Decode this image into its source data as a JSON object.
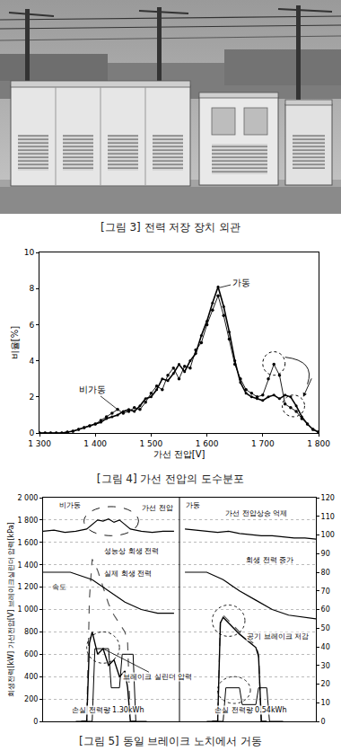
{
  "photo": {
    "caption": "[그림 3] 전력 저장 장치 외관"
  },
  "chart_data": [
    {
      "type": "line",
      "caption": "[그림 4] 가선 전압의 도수분포",
      "x_label": "가선 전압[V]",
      "y_label": "비율[%]",
      "x": [
        1300,
        1310,
        1320,
        1330,
        1340,
        1350,
        1360,
        1370,
        1380,
        1390,
        1400,
        1410,
        1420,
        1430,
        1440,
        1450,
        1460,
        1470,
        1480,
        1490,
        1500,
        1510,
        1520,
        1530,
        1540,
        1550,
        1560,
        1570,
        1580,
        1590,
        1600,
        1610,
        1620,
        1630,
        1640,
        1650,
        1660,
        1670,
        1680,
        1690,
        1700,
        1710,
        1720,
        1730,
        1740,
        1750,
        1760,
        1770,
        1780,
        1790,
        1800
      ],
      "series": [
        {
          "name": "비가동",
          "color": "#000000",
          "marker": "circle",
          "line_style": "solid",
          "values": [
            0,
            0,
            0,
            0,
            0,
            0.05,
            0.1,
            0.2,
            0.3,
            0.4,
            0.5,
            0.7,
            0.9,
            1.1,
            1.3,
            1.1,
            1.2,
            1.4,
            1.3,
            1.7,
            2.2,
            2.6,
            2.4,
            3.2,
            3.6,
            3.0,
            3.7,
            3.6,
            4.6,
            5.0,
            6.0,
            6.8,
            7.6,
            6.5,
            5.2,
            3.8,
            3.0,
            2.4,
            2.2,
            2.0,
            2.1,
            3.0,
            3.8,
            3.2,
            1.6,
            1.4,
            1.2,
            0.8,
            0.5,
            0.2,
            0.05
          ]
        },
        {
          "name": "가동",
          "color": "#000000",
          "marker": "circle",
          "line_style": "solid",
          "values": [
            0,
            0,
            0,
            0,
            0,
            0.05,
            0.1,
            0.2,
            0.3,
            0.4,
            0.5,
            0.6,
            0.8,
            0.9,
            1.0,
            1.2,
            1.3,
            1.2,
            1.5,
            1.9,
            2.0,
            2.4,
            3.0,
            2.9,
            3.3,
            3.8,
            3.4,
            4.0,
            4.4,
            5.4,
            6.2,
            7.2,
            8.1,
            7.0,
            5.6,
            4.0,
            2.8,
            2.2,
            2.0,
            1.9,
            1.8,
            2.0,
            2.1,
            1.9,
            2.1,
            2.0,
            1.5,
            0.9,
            0.5,
            0.2,
            0.05
          ]
        }
      ],
      "xlim": [
        1300,
        1800
      ],
      "xticks": [
        {
          "value": 1300,
          "label": "1 300"
        },
        {
          "value": 1400,
          "label": "1 400"
        },
        {
          "value": 1500,
          "label": "1 500"
        },
        {
          "value": 1600,
          "label": "1 600"
        },
        {
          "value": 1700,
          "label": "1 700"
        },
        {
          "value": 1800,
          "label": "1 800"
        }
      ],
      "ylim": [
        0,
        10
      ],
      "yticks": [
        0,
        2,
        4,
        6,
        8,
        10
      ],
      "grid": false
    },
    {
      "type": "line",
      "caption": "[그림 5] 동일 브레이크 노치에서 거동",
      "y_label": "회생전력[kW] 가선전압[V] 브레이크실린더 압력[kPa]",
      "series": [
        {
          "name": "가선 전압",
          "color": "#000000",
          "line_style": "solid",
          "x": [
            0,
            4,
            8,
            12,
            16,
            18,
            20,
            22,
            24,
            26,
            28,
            30,
            32,
            36,
            40,
            44,
            48,
            50,
            52,
            56,
            60,
            64,
            68,
            72,
            76,
            80,
            84,
            88,
            92,
            96,
            100
          ],
          "values": [
            1700,
            1710,
            1690,
            1700,
            1720,
            1760,
            1800,
            1790,
            1810,
            1780,
            1800,
            1760,
            1720,
            1700,
            1690,
            1700,
            1700,
            null,
            1720,
            1710,
            1700,
            1690,
            1700,
            1680,
            1670,
            1660,
            1660,
            1650,
            1640,
            1640,
            1630
          ]
        },
        {
          "name": "성능상 회생 전력",
          "color": "#555555",
          "line_style": "dash",
          "x": [
            14,
            16,
            17,
            18,
            20,
            22,
            24,
            26,
            28,
            30,
            31,
            32,
            34,
            50,
            62,
            64,
            65,
            66,
            68,
            70,
            72,
            74,
            76,
            78,
            79,
            80,
            82
          ],
          "values": [
            0,
            0,
            1100,
            1450,
            1350,
            1200,
            1050,
            950,
            880,
            800,
            700,
            0,
            0,
            null,
            0,
            0,
            900,
            950,
            900,
            850,
            800,
            760,
            720,
            680,
            600,
            0,
            0
          ]
        },
        {
          "name": "실제 회생 전력",
          "color": "#000000",
          "line_style": "solid",
          "x": [
            14,
            16,
            17,
            18,
            20,
            22,
            24,
            26,
            28,
            30,
            31,
            32,
            34,
            50,
            62,
            64,
            65,
            66,
            68,
            70,
            72,
            74,
            76,
            78,
            79,
            80,
            82
          ],
          "values": [
            0,
            0,
            700,
            800,
            600,
            650,
            500,
            550,
            400,
            450,
            300,
            0,
            0,
            null,
            0,
            0,
            880,
            930,
            880,
            830,
            780,
            740,
            700,
            660,
            580,
            0,
            0
          ]
        },
        {
          "name": "브레이크 실린더 압력",
          "color": "#000000",
          "line_style": "solid",
          "x": [
            12,
            18,
            19,
            24,
            25,
            28,
            29,
            33,
            34,
            38,
            50,
            60,
            66,
            67,
            72,
            73,
            78,
            79,
            82,
            83,
            88
          ],
          "values": [
            0,
            0,
            650,
            650,
            300,
            300,
            600,
            600,
            0,
            0,
            null,
            0,
            0,
            300,
            300,
            150,
            150,
            300,
            300,
            0,
            0
          ]
        },
        {
          "name": "속도",
          "color": "#000000",
          "line_style": "solid",
          "axis": "y2",
          "x": [
            0,
            10,
            18,
            24,
            30,
            36,
            42,
            48,
            50,
            52,
            60,
            66,
            72,
            78,
            84,
            90,
            100
          ],
          "values": [
            80,
            80,
            76,
            70,
            64,
            60,
            58,
            58,
            null,
            80,
            80,
            76,
            70,
            65,
            60,
            57,
            55
          ]
        }
      ],
      "annotations": [
        "비가동",
        "가동",
        "가선 전압상승 억제",
        "회생 전력 증가",
        "공기 브레이크 저감",
        "손실 전력량 1.30kWh",
        "손실 전력량 0.54kWh"
      ],
      "xlim": [
        0,
        100
      ],
      "ylim": [
        0,
        2000
      ],
      "yticks": [
        0,
        200,
        400,
        600,
        800,
        {
          "value": 1000,
          "label": "1 000"
        },
        {
          "value": 1200,
          "label": "1 200"
        },
        {
          "value": 1400,
          "label": "1 400"
        },
        {
          "value": 1600,
          "label": "1 600"
        },
        {
          "value": 1800,
          "label": "1 800"
        },
        {
          "value": 2000,
          "label": "2 000"
        }
      ],
      "y2lim": [
        0,
        120
      ],
      "y2ticks": [
        0,
        10,
        20,
        30,
        40,
        50,
        60,
        70,
        80,
        90,
        100,
        110,
        120
      ],
      "grid": true,
      "tick_labels": "y"
    }
  ]
}
